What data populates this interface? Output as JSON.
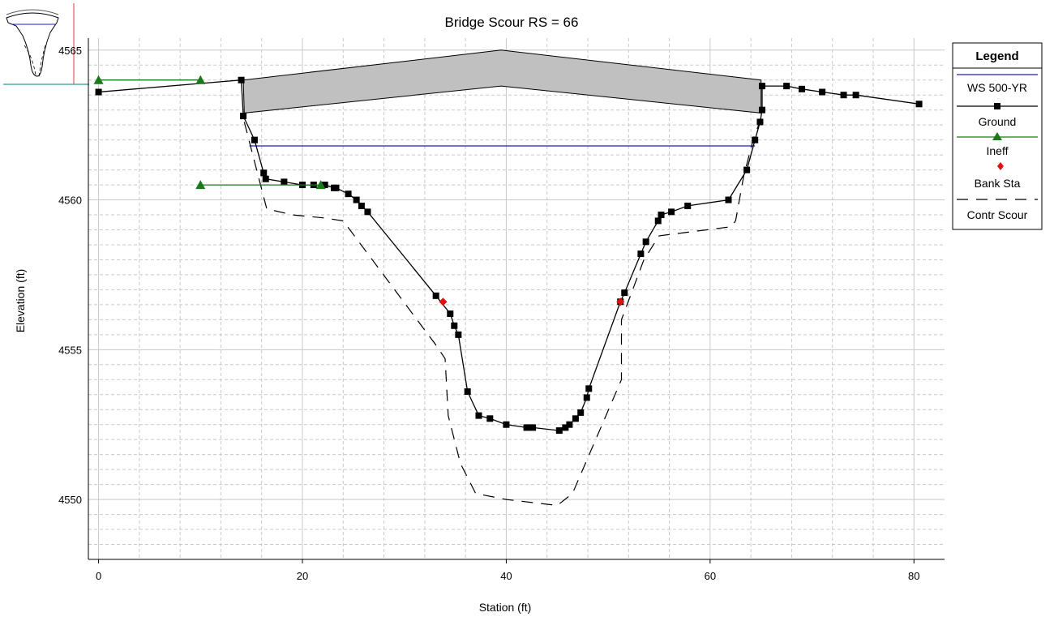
{
  "chart_data": {
    "type": "line",
    "title": "Bridge Scour RS = 66",
    "xlabel": "Station (ft)",
    "ylabel": "Elevation (ft)",
    "xlim": [
      -1,
      83
    ],
    "ylim": [
      4548,
      4565.4
    ],
    "x_ticks": [
      0,
      20,
      40,
      60,
      80
    ],
    "y_ticks": [
      4550,
      4555,
      4560,
      4565
    ],
    "y_tick_labels": [
      "4550",
      "4555",
      "4560",
      "4565"
    ],
    "grid": true,
    "legend": {
      "title": "Legend",
      "position": "right",
      "entries": [
        "WS 500-YR",
        "Ground",
        "Ineff",
        "Bank Sta",
        "Contr Scour"
      ]
    },
    "colors": {
      "ws": "#1f1fbf",
      "ground": "#000000",
      "ineff": "#1a7a1a",
      "bank": "#e01010",
      "deck": "#c0c0c0",
      "grid": "#c8c8c8",
      "inset_red": "#e06060",
      "inset_teal": "#2a9a9a"
    },
    "series": [
      {
        "name": "WS 500-YR",
        "points": [
          [
            14.8,
            4561.8
          ],
          [
            64.4,
            4561.8
          ]
        ]
      },
      {
        "name": "Ground",
        "points": [
          [
            0,
            4563.6
          ],
          [
            14,
            4564.0
          ],
          [
            14.2,
            4562.8
          ],
          [
            15.3,
            4562.0
          ],
          [
            16.2,
            4560.9
          ],
          [
            16.4,
            4560.7
          ],
          [
            18.2,
            4560.6
          ],
          [
            20.0,
            4560.5
          ],
          [
            21.1,
            4560.5
          ],
          [
            22.2,
            4560.5
          ],
          [
            23.1,
            4560.4
          ],
          [
            23.3,
            4560.4
          ],
          [
            24.5,
            4560.2
          ],
          [
            25.3,
            4560.0
          ],
          [
            25.8,
            4559.8
          ],
          [
            26.4,
            4559.6
          ],
          [
            33.1,
            4556.8
          ],
          [
            34.5,
            4556.2
          ],
          [
            34.9,
            4555.8
          ],
          [
            35.3,
            4555.5
          ],
          [
            36.2,
            4553.6
          ],
          [
            37.3,
            4552.8
          ],
          [
            38.4,
            4552.7
          ],
          [
            40.0,
            4552.5
          ],
          [
            42.0,
            4552.4
          ],
          [
            42.6,
            4552.4
          ],
          [
            45.2,
            4552.3
          ],
          [
            45.8,
            4552.4
          ],
          [
            46.2,
            4552.5
          ],
          [
            46.8,
            4552.7
          ],
          [
            47.3,
            4552.9
          ],
          [
            47.9,
            4553.4
          ],
          [
            48.1,
            4553.7
          ],
          [
            51.2,
            4556.6
          ],
          [
            51.6,
            4556.9
          ],
          [
            53.2,
            4558.2
          ],
          [
            53.7,
            4558.6
          ],
          [
            54.9,
            4559.3
          ],
          [
            55.2,
            4559.5
          ],
          [
            56.2,
            4559.6
          ],
          [
            57.8,
            4559.8
          ],
          [
            61.8,
            4560.0
          ],
          [
            63.6,
            4561.0
          ],
          [
            64.4,
            4562.0
          ],
          [
            64.9,
            4562.6
          ],
          [
            65.1,
            4563.0
          ],
          [
            65.1,
            4563.8
          ],
          [
            67.5,
            4563.8
          ],
          [
            69.0,
            4563.7
          ],
          [
            71.0,
            4563.6
          ],
          [
            73.1,
            4563.5
          ],
          [
            74.3,
            4563.5
          ],
          [
            80.5,
            4563.2
          ]
        ]
      },
      {
        "name": "Ineff",
        "segments": [
          [
            [
              0,
              4564.0
            ],
            [
              10.0,
              4564.0
            ]
          ],
          [
            [
              10.0,
              4560.5
            ],
            [
              21.8,
              4560.5
            ]
          ]
        ],
        "markers": [
          [
            0,
            4564.0
          ],
          [
            10.0,
            4564.0
          ],
          [
            10.0,
            4560.5
          ],
          [
            21.8,
            4560.5
          ]
        ]
      },
      {
        "name": "Bank Sta",
        "points": [
          [
            33.8,
            4556.6
          ],
          [
            51.2,
            4556.6
          ]
        ]
      },
      {
        "name": "Contr Scour",
        "points": [
          [
            14.3,
            4562.6
          ],
          [
            16.5,
            4559.7
          ],
          [
            19.0,
            4559.5
          ],
          [
            22.0,
            4559.4
          ],
          [
            24.0,
            4559.3
          ],
          [
            33.0,
            4555.2
          ],
          [
            34.0,
            4554.7
          ],
          [
            34.3,
            4552.8
          ],
          [
            35.5,
            4551.2
          ],
          [
            37.0,
            4550.2
          ],
          [
            40.0,
            4550.0
          ],
          [
            45.0,
            4549.8
          ],
          [
            46.5,
            4550.2
          ],
          [
            51.3,
            4554.0
          ],
          [
            51.3,
            4556.0
          ],
          [
            53.5,
            4558.0
          ],
          [
            55.0,
            4558.8
          ],
          [
            62.0,
            4559.1
          ],
          [
            62.5,
            4559.3
          ],
          [
            63.3,
            4560.8
          ],
          [
            64.3,
            4562.1
          ],
          [
            65.0,
            4562.7
          ]
        ]
      }
    ],
    "bridge_deck": {
      "top": [
        [
          14.2,
          4564.0
        ],
        [
          39.5,
          4565.0
        ],
        [
          65.0,
          4564.0
        ]
      ],
      "bottom": [
        [
          14.3,
          4562.9
        ],
        [
          39.5,
          4563.8
        ],
        [
          65.0,
          4562.9
        ]
      ]
    }
  }
}
